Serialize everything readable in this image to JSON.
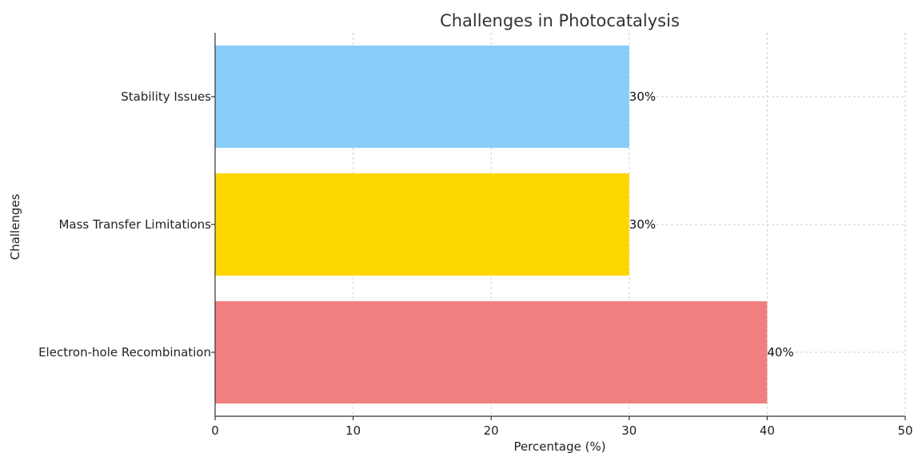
{
  "chart_data": {
    "type": "bar",
    "orientation": "horizontal",
    "title": "Challenges in Photocatalysis",
    "xlabel": "Percentage (%)",
    "ylabel": "Challenges",
    "categories": [
      "Electron-hole Recombination",
      "Mass Transfer Limitations",
      "Stability Issues"
    ],
    "values": [
      40,
      30,
      30
    ],
    "value_labels": [
      "40%",
      "30%",
      "30%"
    ],
    "colors": [
      "#f08080",
      "#ffd700",
      "#87cefa"
    ],
    "xlim": [
      0,
      50
    ],
    "xticks": [
      0,
      10,
      20,
      30,
      40,
      50
    ],
    "grid": true,
    "legend": "none"
  }
}
